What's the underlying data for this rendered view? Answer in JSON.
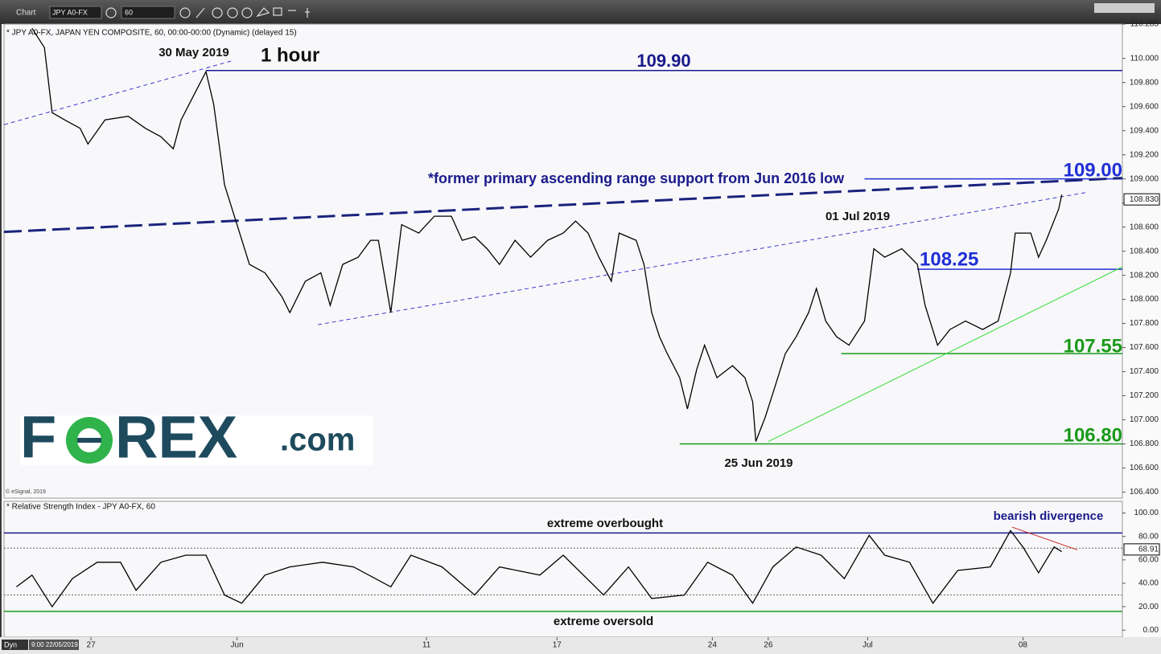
{
  "toolbar": {
    "title": "Chart",
    "symbol": "JPY A0-FX",
    "interval": "60"
  },
  "footer": {
    "mode": "Dyn",
    "start": "9:00 22/05/2019"
  },
  "logo": [
    "F",
    "REX",
    ".com"
  ],
  "chart_data": [
    {
      "type": "line",
      "title": "* JPY A0-FX, JAPAN YEN COMPOSITE, 60, 00:00-00:00 (Dynamic) (delayed 15)",
      "source": "© eSignal, 2019",
      "annotations": {
        "date_high": "30 May 2019",
        "timeframe": "1 hour",
        "support_note": "*former  primary ascending range support from Jun 2016 low",
        "date_jul": "01 Jul 2019",
        "date_low": "25 Jun 2019"
      },
      "xlim": [
        0,
        36
      ],
      "ylim": [
        106.35,
        110.285
      ],
      "yticks": [
        {
          "value": 106.4,
          "label": "106.400"
        },
        {
          "value": 106.6,
          "label": "106.600"
        },
        {
          "value": 106.8,
          "label": "106.800"
        },
        {
          "value": 107.0,
          "label": "107.000"
        },
        {
          "value": 107.2,
          "label": "107.200"
        },
        {
          "value": 107.4,
          "label": "107.400"
        },
        {
          "value": 107.6,
          "label": "107.600"
        },
        {
          "value": 107.8,
          "label": "107.800"
        },
        {
          "value": 108.0,
          "label": "108.000"
        },
        {
          "value": 108.2,
          "label": "108.200"
        },
        {
          "value": 108.4,
          "label": "108.400"
        },
        {
          "value": 108.6,
          "label": "108.600"
        },
        {
          "value": 108.8,
          "label": "108.800"
        },
        {
          "value": 109.0,
          "label": "109.000"
        },
        {
          "value": 109.2,
          "label": "109.200"
        },
        {
          "value": 109.4,
          "label": "109.400"
        },
        {
          "value": 109.6,
          "label": "109.600"
        },
        {
          "value": 109.8,
          "label": "109.800"
        },
        {
          "value": 110.0,
          "label": "110.000"
        },
        {
          "value": 110.285,
          "label": "110.285"
        }
      ],
      "series": [
        {
          "name": "JPY A0-FX",
          "color": "#000000",
          "x": [
            0.9,
            1.3,
            1.55,
            1.95,
            2.45,
            2.7,
            3.25,
            4.0,
            4.55,
            5.05,
            5.45,
            5.7,
            6.1,
            6.5,
            6.75,
            7.1,
            7.5,
            7.9,
            8.4,
            8.95,
            9.2,
            9.7,
            10.2,
            10.5,
            10.9,
            11.4,
            11.8,
            12.05,
            12.45,
            12.8,
            13.35,
            13.85,
            14.4,
            14.75,
            15.15,
            15.55,
            15.95,
            16.45,
            16.95,
            17.5,
            18.0,
            18.4,
            18.8,
            19.15,
            19.55,
            19.8,
            20.35,
            20.6,
            20.85,
            21.1,
            21.35,
            21.75,
            22.0,
            22.3,
            22.55,
            22.95,
            23.45,
            23.85,
            24.1,
            24.2,
            24.5,
            24.75,
            25.15,
            25.5,
            25.9,
            26.15,
            26.45,
            26.8,
            27.2,
            27.7,
            28.0,
            28.35,
            28.9,
            29.4,
            29.65,
            30.05,
            30.45,
            30.95,
            31.5,
            32.0,
            32.4,
            32.55,
            33.05,
            33.3,
            33.55,
            33.95,
            34.05
          ],
          "values": [
            110.25,
            110.09,
            109.55,
            109.49,
            109.42,
            109.29,
            109.49,
            109.52,
            109.42,
            109.35,
            109.25,
            109.49,
            109.69,
            109.89,
            109.62,
            108.95,
            108.62,
            108.29,
            108.22,
            108.02,
            107.89,
            108.15,
            108.22,
            107.95,
            108.29,
            108.35,
            108.49,
            108.49,
            107.89,
            108.62,
            108.55,
            108.69,
            108.69,
            108.49,
            108.52,
            108.42,
            108.29,
            108.49,
            108.35,
            108.49,
            108.55,
            108.65,
            108.55,
            108.35,
            108.15,
            108.55,
            108.49,
            108.29,
            107.89,
            107.69,
            107.55,
            107.35,
            107.09,
            107.42,
            107.62,
            107.35,
            107.45,
            107.35,
            107.15,
            106.82,
            107.02,
            107.22,
            107.55,
            107.69,
            107.89,
            108.09,
            107.82,
            107.69,
            107.62,
            107.82,
            108.42,
            108.35,
            108.42,
            108.29,
            107.95,
            107.62,
            107.75,
            107.82,
            107.75,
            107.82,
            108.22,
            108.55,
            108.55,
            108.35,
            108.49,
            108.75,
            108.87
          ]
        }
      ],
      "last_value": {
        "value": 108.83,
        "label": "108.830"
      },
      "levels": [
        {
          "value": 109.9,
          "label": "109.90",
          "color": "#1a1a8c",
          "x_start": 6.5
        },
        {
          "value": 109.0,
          "label": "109.00",
          "color": "#1f2fd6",
          "x_start": 27.7
        },
        {
          "value": 108.25,
          "label": "108.25",
          "color": "#1f2fd6",
          "x_start": 29.4
        },
        {
          "value": 107.55,
          "label": "107.55",
          "color": "#1a9a1a",
          "x_start": 26.95
        },
        {
          "value": 106.8,
          "label": "106.80",
          "color": "#1a9a1a",
          "x_start": 21.75
        }
      ],
      "trendlines": [
        {
          "x": [
            0,
            36
          ],
          "y": [
            108.56,
            109.007
          ],
          "color": "#1a237e",
          "style": "long-dash"
        },
        {
          "x": [
            0,
            7.33
          ],
          "y": [
            109.45,
            109.98
          ],
          "color": "#3a3acc",
          "style": "dash"
        },
        {
          "x": [
            10.1,
            34.9
          ],
          "y": [
            107.79,
            108.89
          ],
          "color": "#3a3acc",
          "style": "dash"
        },
        {
          "x": [
            24.6,
            36
          ],
          "y": [
            106.82,
            108.27
          ],
          "color": "#33dd33",
          "style": "solid"
        }
      ]
    },
    {
      "type": "line",
      "title": "* Relative Strength Index - JPY A0-FX, 60",
      "annotations": {
        "overbought": "extreme overbought",
        "oversold": "extreme oversold",
        "divergence": "bearish divergence"
      },
      "xlim": [
        0,
        36
      ],
      "ylim": [
        -6,
        110
      ],
      "xticks": [
        {
          "value": 2.8,
          "label": "27"
        },
        {
          "value": 7.5,
          "label": "Jun"
        },
        {
          "value": 13.6,
          "label": "11"
        },
        {
          "value": 17.8,
          "label": "17"
        },
        {
          "value": 22.8,
          "label": "24"
        },
        {
          "value": 24.6,
          "label": "26"
        },
        {
          "value": 27.8,
          "label": "Jul"
        },
        {
          "value": 32.8,
          "label": "08"
        }
      ],
      "yticks": [
        {
          "value": 0,
          "label": "0.00"
        },
        {
          "value": 20,
          "label": "20.00"
        },
        {
          "value": 40,
          "label": "40.00"
        },
        {
          "value": 60,
          "label": "60.00"
        },
        {
          "value": 80,
          "label": "80.00"
        },
        {
          "value": 100,
          "label": "100.00"
        }
      ],
      "series": [
        {
          "name": "RSI",
          "color": "#000000",
          "x": [
            0.4,
            0.9,
            1.55,
            2.2,
            3.0,
            3.75,
            4.25,
            5.05,
            5.85,
            6.5,
            7.1,
            7.65,
            8.4,
            9.2,
            10.25,
            11.25,
            12.45,
            13.1,
            14.1,
            15.15,
            15.95,
            17.25,
            18.0,
            19.3,
            20.1,
            20.85,
            21.9,
            22.65,
            23.45,
            24.1,
            24.75,
            25.5,
            26.3,
            27.05,
            27.85,
            28.35,
            29.15,
            29.9,
            30.7,
            31.75,
            32.4,
            32.8,
            33.3,
            33.8,
            34.05
          ],
          "values": [
            37,
            47,
            20,
            44,
            58,
            58,
            34,
            58,
            64,
            64,
            30,
            23,
            47,
            54,
            58,
            54,
            37,
            64,
            54,
            30,
            54,
            47,
            64,
            30,
            54,
            27,
            30,
            58,
            47,
            23,
            54,
            71,
            64,
            44,
            81,
            64,
            58,
            23,
            51,
            54,
            85,
            71,
            49,
            71,
            67
          ]
        }
      ],
      "last_value": {
        "value": 68.91,
        "label": "68.91"
      },
      "levels": [
        {
          "value": 83,
          "color": "#1a1a8c",
          "x_start": 0
        },
        {
          "value": 16,
          "color": "#1a9a1a",
          "x_start": 0
        }
      ],
      "reference_lines": [
        70,
        30
      ],
      "trendlines": [
        {
          "x": [
            32.45,
            34.55
          ],
          "y": [
            88,
            68.5
          ],
          "color": "#cc2222",
          "style": "solid"
        }
      ]
    }
  ]
}
